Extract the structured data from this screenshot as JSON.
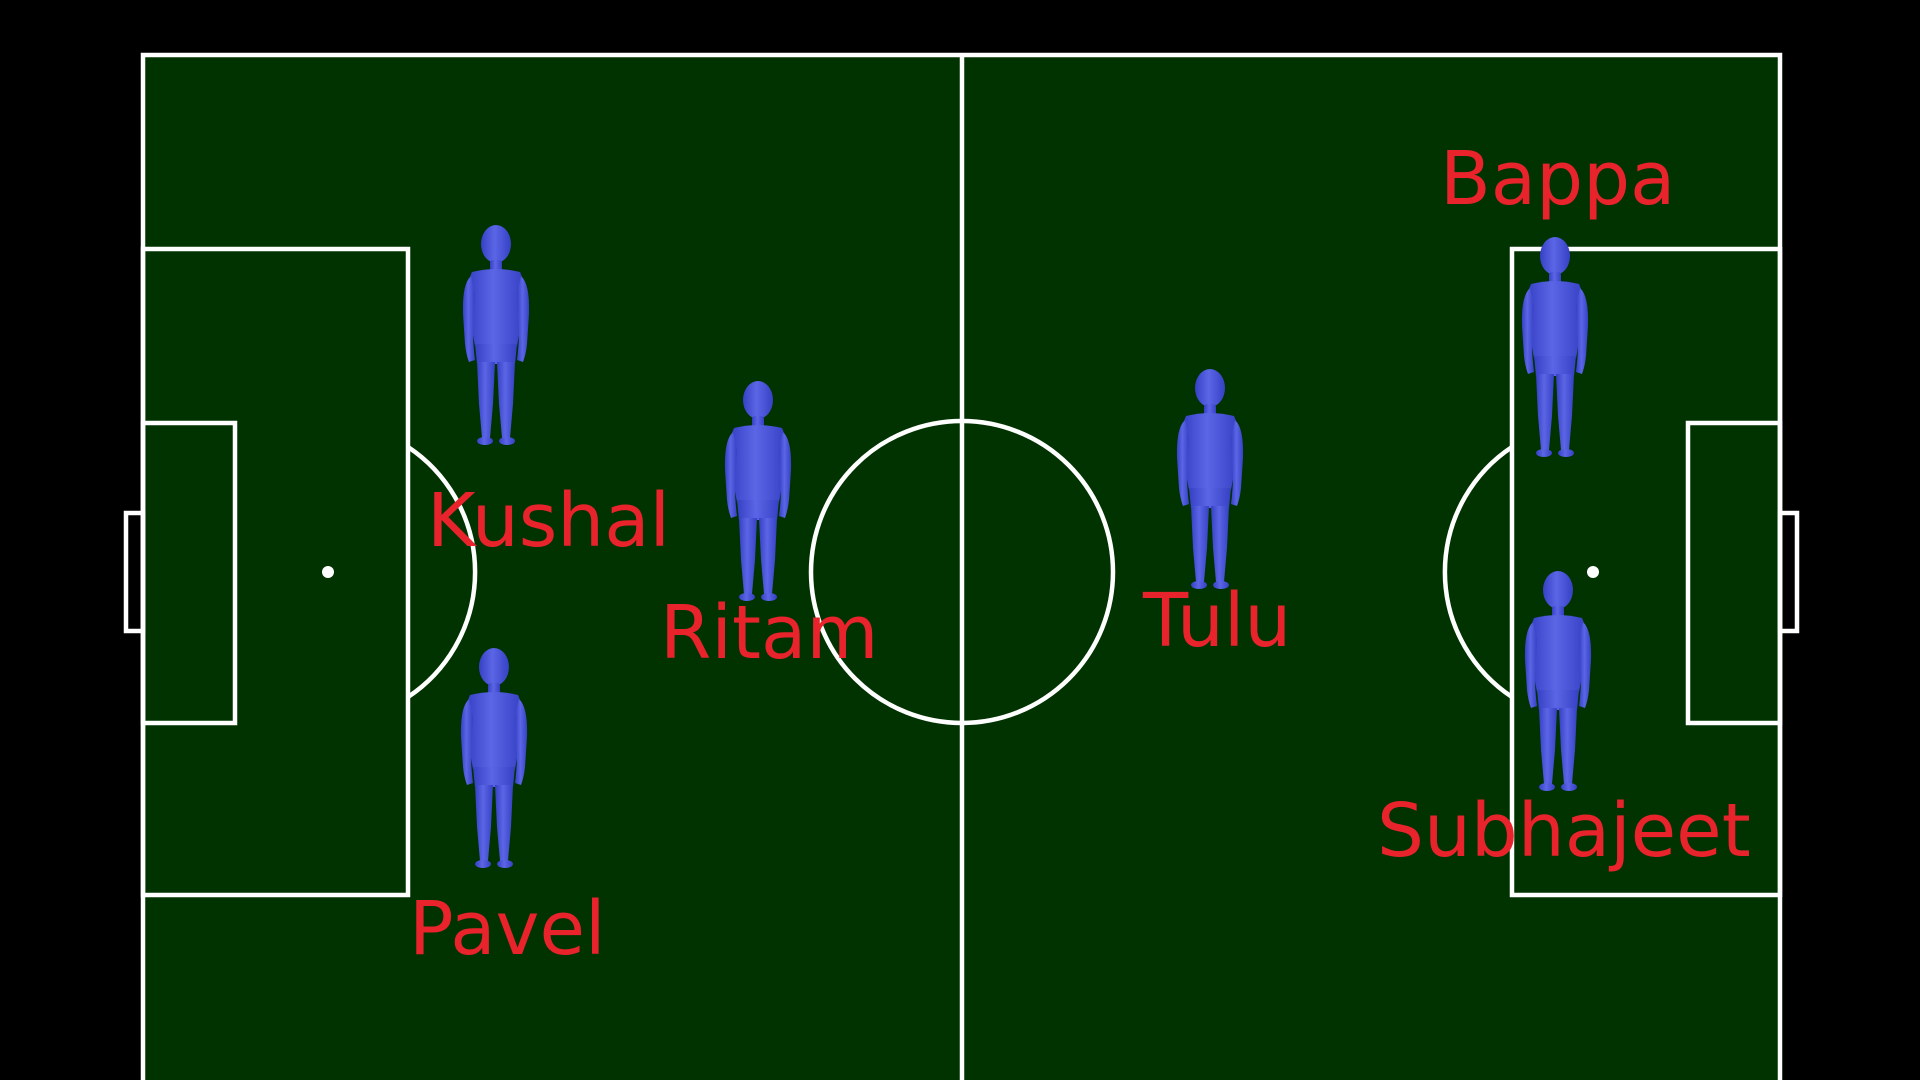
{
  "colors": {
    "background": "#000000",
    "pitch": "#003300",
    "lines": "#ffffff",
    "player_figure": "#4a55d8",
    "player_label": "#e8232b"
  },
  "players": [
    {
      "id": "kushal",
      "name": "Kushal",
      "figure_icon": "player-figure-icon"
    },
    {
      "id": "pavel",
      "name": "Pavel",
      "figure_icon": "player-figure-icon"
    },
    {
      "id": "ritam",
      "name": "Ritam",
      "figure_icon": "player-figure-icon"
    },
    {
      "id": "tulu",
      "name": "Tulu",
      "figure_icon": "player-figure-icon"
    },
    {
      "id": "bappa",
      "name": "Bappa",
      "figure_icon": "player-figure-icon"
    },
    {
      "id": "subhajeet",
      "name": "Subhajeet",
      "figure_icon": "player-figure-icon"
    }
  ]
}
